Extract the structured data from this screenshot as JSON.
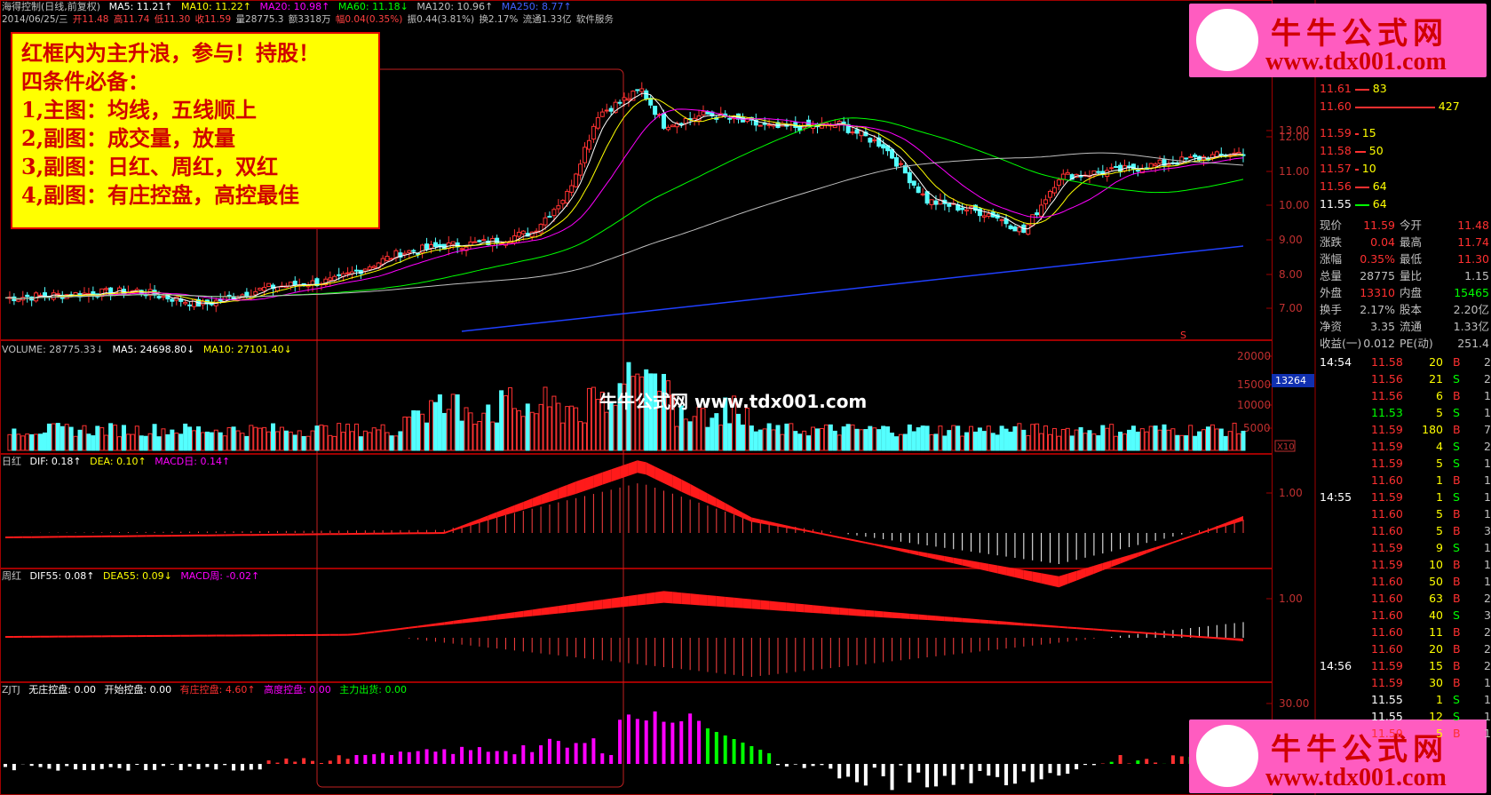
{
  "main": {
    "stock_label": "海得控制(日线,前复权)",
    "ma5": "MA5: 11.21↑",
    "ma10": "MA10: 11.22↑",
    "ma20": "MA20: 10.98↑",
    "ma60": "MA60: 11.18↓",
    "ma120": "MA120: 10.96↑",
    "ma250": "MA250: 8.77↑",
    "date": "2014/06/25/三",
    "open": "开11.48",
    "high": "高11.74",
    "low": "低11.30",
    "close": "收11.59",
    "vol": "量28775.3",
    "amount": "额3318万",
    "change": "幅0.04(0.35%)",
    "amplitude": "振0.44(3.81%)",
    "turnover": "换2.17%",
    "float_shares": "流通1.33亿",
    "sector": "软件服务",
    "axis": [
      "13.00",
      "12.00",
      "11.00",
      "10.00",
      "9.00",
      "8.00",
      "7.00"
    ],
    "marker": "S"
  },
  "note": {
    "lines": [
      "红框内为主升浪，参与！持股！",
      "四条件必备：",
      "1,主图：均线，五线顺上",
      "2,副图：成交量，放量",
      "3,副图：日红、周红，双红",
      "4,副图：有庄控盘，高控最佳"
    ]
  },
  "volume": {
    "vol": "VOLUME: 28775.33↓",
    "ma5": "MA5: 24698.80↓",
    "ma10": "MA10: 27101.40↓",
    "axis": [
      "20000",
      "15000",
      "10000",
      "5000"
    ],
    "highlight": "13264",
    "unit": "X10"
  },
  "macd_day": {
    "name": "日红",
    "dif": "DIF: 0.18↑",
    "dea": "DEA: 0.10↑",
    "macd": "MACD日: 0.14↑",
    "axis": "1.00"
  },
  "macd_week": {
    "name": "周红",
    "dif": "DIF55: 0.08↑",
    "dea": "DEA55: 0.09↓",
    "macd": "MACD周: -0.02↑",
    "axis": "1.00"
  },
  "zjtj": {
    "name": "ZJTJ",
    "a": "无庄控盘: 0.00",
    "b": "开始控盘: 0.00",
    "c": "有庄控盘: 4.60↑",
    "d": "高度控盘: 0.00",
    "e": "主力出货: 0.00",
    "axis": "30.00"
  },
  "watermark": "牛牛公式网 www.tdx001.com",
  "logo": {
    "cn": "牛牛公式网",
    "url": "www.tdx001.com"
  },
  "orderbook": {
    "sell": [
      {
        "p": "11.61",
        "v": "83"
      },
      {
        "p": "11.60",
        "v": "427"
      }
    ],
    "buy": [
      {
        "p": "11.59",
        "v": "15"
      },
      {
        "p": "11.58",
        "v": "50"
      },
      {
        "p": "11.57",
        "v": "10"
      },
      {
        "p": "11.56",
        "v": "64"
      },
      {
        "p": "11.55",
        "v": "64"
      }
    ]
  },
  "quote": [
    {
      "l1": "现价",
      "v1": "11.59",
      "l2": "今开",
      "v2": "11.48"
    },
    {
      "l1": "涨跌",
      "v1": "0.04",
      "l2": "最高",
      "v2": "11.74"
    },
    {
      "l1": "涨幅",
      "v1": "0.35%",
      "l2": "最低",
      "v2": "11.30"
    },
    {
      "l1": "总量",
      "v1": "28775",
      "l2": "量比",
      "v2": "1.15"
    },
    {
      "l1": "外盘",
      "v1": "13310",
      "l2": "内盘",
      "v2": "15465"
    },
    {
      "l1": "换手",
      "v1": "2.17%",
      "l2": "股本",
      "v2": "2.20亿"
    },
    {
      "l1": "净资",
      "v1": "3.35",
      "l2": "流通",
      "v2": "1.33亿"
    },
    {
      "l1": "收益(一)",
      "v1": "0.012",
      "l2": "PE(动)",
      "v2": "251.4"
    }
  ],
  "ticks": [
    {
      "t": "14:54",
      "p": "11.58",
      "v": "20",
      "s": "B",
      "n": "2"
    },
    {
      "t": "",
      "p": "11.56",
      "v": "21",
      "s": "S",
      "n": "2"
    },
    {
      "t": "",
      "p": "11.56",
      "v": "6",
      "s": "B",
      "n": "1"
    },
    {
      "t": "",
      "p": "11.53",
      "v": "5",
      "s": "S",
      "n": "1"
    },
    {
      "t": "",
      "p": "11.59",
      "v": "180",
      "s": "B",
      "n": "7"
    },
    {
      "t": "",
      "p": "11.59",
      "v": "4",
      "s": "S",
      "n": "2"
    },
    {
      "t": "",
      "p": "11.59",
      "v": "5",
      "s": "S",
      "n": "1"
    },
    {
      "t": "",
      "p": "11.60",
      "v": "1",
      "s": "B",
      "n": "1"
    },
    {
      "t": "14:55",
      "p": "11.59",
      "v": "1",
      "s": "S",
      "n": "1"
    },
    {
      "t": "",
      "p": "11.60",
      "v": "5",
      "s": "B",
      "n": "1"
    },
    {
      "t": "",
      "p": "11.60",
      "v": "5",
      "s": "B",
      "n": "3"
    },
    {
      "t": "",
      "p": "11.59",
      "v": "9",
      "s": "S",
      "n": "1"
    },
    {
      "t": "",
      "p": "11.59",
      "v": "10",
      "s": "B",
      "n": "1"
    },
    {
      "t": "",
      "p": "11.60",
      "v": "50",
      "s": "B",
      "n": "1"
    },
    {
      "t": "",
      "p": "11.60",
      "v": "63",
      "s": "B",
      "n": "2"
    },
    {
      "t": "",
      "p": "11.60",
      "v": "40",
      "s": "S",
      "n": "3"
    },
    {
      "t": "",
      "p": "11.60",
      "v": "11",
      "s": "B",
      "n": "2"
    },
    {
      "t": "",
      "p": "11.60",
      "v": "20",
      "s": "B",
      "n": "2"
    },
    {
      "t": "14:56",
      "p": "11.59",
      "v": "15",
      "s": "B",
      "n": "2"
    },
    {
      "t": "",
      "p": "11.59",
      "v": "30",
      "s": "B",
      "n": "1"
    },
    {
      "t": "",
      "p": "11.55",
      "v": "1",
      "s": "S",
      "n": "1"
    },
    {
      "t": "",
      "p": "11.55",
      "v": "12",
      "s": "S",
      "n": "1"
    },
    {
      "t": "",
      "p": "11.59",
      "v": "5",
      "s": "B",
      "n": "1"
    }
  ]
}
